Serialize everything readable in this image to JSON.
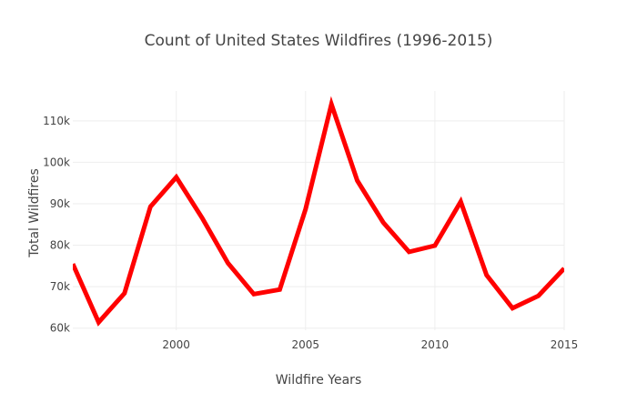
{
  "chart_data": {
    "type": "line",
    "title": "Count of United States Wildfires (1996-2015)",
    "xlabel": "Wildfire Years",
    "ylabel": "Total Wildfires",
    "x": [
      1996,
      1997,
      1998,
      1999,
      2000,
      2001,
      2002,
      2003,
      2004,
      2005,
      2006,
      2007,
      2008,
      2009,
      2010,
      2011,
      2012,
      2013,
      2014,
      2015
    ],
    "series": [
      {
        "values": [
          75500,
          61400,
          68400,
          89300,
          96400,
          86600,
          75700,
          68200,
          69300,
          88700,
          114000,
          95600,
          85500,
          78400,
          79900,
          90500,
          72800,
          64800,
          67800,
          74400
        ],
        "color": "#ff0000"
      }
    ],
    "xlim": [
      1996,
      2015
    ],
    "ylim": [
      59500,
      117200
    ],
    "x_ticks": [
      2000,
      2005,
      2010,
      2015
    ],
    "x_tick_labels": [
      "2000",
      "2005",
      "2010",
      "2015"
    ],
    "y_ticks": [
      60000,
      70000,
      80000,
      90000,
      100000,
      110000
    ],
    "y_tick_labels": [
      "60k",
      "70k",
      "80k",
      "90k",
      "100k",
      "110k"
    ],
    "grid": true,
    "legend": false
  }
}
